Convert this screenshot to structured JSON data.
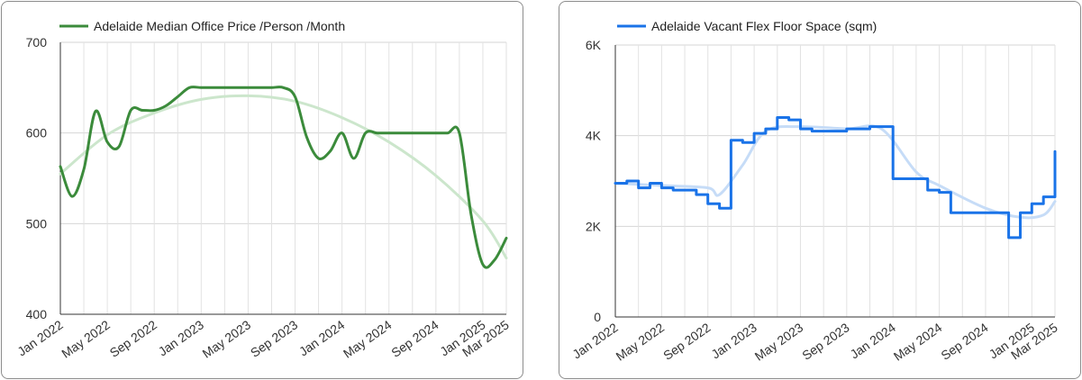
{
  "chart_data": [
    {
      "type": "line",
      "title": "",
      "legend": "top-left",
      "grid": true,
      "ylim": [
        400,
        700
      ],
      "y_ticks": [
        "400",
        "500",
        "600",
        "700"
      ],
      "x_ticks": [
        "Jan 2022",
        "May 2022",
        "Sep 2022",
        "Jan 2023",
        "May 2023",
        "Sep 2023",
        "Jan 2024",
        "May 2024",
        "Sep 2024",
        "Jan 2025",
        "Mar 2025"
      ],
      "x_range": [
        "2022-01",
        "2025-03"
      ],
      "series": [
        {
          "name": "Adelaide Median Office Price /Person /Month",
          "color": "#3b8b3b",
          "points": [
            [
              "2022-01",
              563
            ],
            [
              "2022-02",
              530
            ],
            [
              "2022-03",
              560
            ],
            [
              "2022-04",
              624
            ],
            [
              "2022-05",
              590
            ],
            [
              "2022-06",
              585
            ],
            [
              "2022-07",
              625
            ],
            [
              "2022-08",
              625
            ],
            [
              "2022-09",
              625
            ],
            [
              "2022-10",
              630
            ],
            [
              "2022-11",
              640
            ],
            [
              "2022-12",
              650
            ],
            [
              "2023-01",
              650
            ],
            [
              "2023-02",
              650
            ],
            [
              "2023-03",
              650
            ],
            [
              "2023-04",
              650
            ],
            [
              "2023-05",
              650
            ],
            [
              "2023-06",
              650
            ],
            [
              "2023-07",
              650
            ],
            [
              "2023-08",
              650
            ],
            [
              "2023-09",
              640
            ],
            [
              "2023-10",
              595
            ],
            [
              "2023-11",
              572
            ],
            [
              "2023-12",
              580
            ],
            [
              "2024-01",
              600
            ],
            [
              "2024-02",
              572
            ],
            [
              "2024-03",
              600
            ],
            [
              "2024-04",
              600
            ],
            [
              "2024-05",
              600
            ],
            [
              "2024-06",
              600
            ],
            [
              "2024-07",
              600
            ],
            [
              "2024-08",
              600
            ],
            [
              "2024-09",
              600
            ],
            [
              "2024-10",
              600
            ],
            [
              "2024-11",
              600
            ],
            [
              "2024-12",
              510
            ],
            [
              "2025-01",
              455
            ],
            [
              "2025-02",
              460
            ],
            [
              "2025-03",
              484
            ]
          ]
        },
        {
          "name": "",
          "color": "#cce6cc",
          "points": [
            [
              "2022-01",
              555
            ],
            [
              "2022-05",
              598
            ],
            [
              "2022-09",
              622
            ],
            [
              "2023-01",
              637
            ],
            [
              "2023-05",
              641
            ],
            [
              "2023-09",
              635
            ],
            [
              "2024-01",
              617
            ],
            [
              "2024-05",
              590
            ],
            [
              "2024-09",
              553
            ],
            [
              "2025-01",
              503
            ],
            [
              "2025-03",
              462
            ]
          ]
        }
      ]
    },
    {
      "type": "line",
      "title": "",
      "legend": "top-left",
      "grid": true,
      "ylim": [
        0,
        6000
      ],
      "y_ticks": [
        "0",
        "2K",
        "4K",
        "6K"
      ],
      "x_ticks": [
        "Jan 2022",
        "May 2022",
        "Sep 2022",
        "Jan 2023",
        "May 2023",
        "Sep 2023",
        "Jan 2024",
        "May 2024",
        "Sep 2024",
        "Jan 2025",
        "Mar 2025"
      ],
      "x_range": [
        "2022-01",
        "2025-03"
      ],
      "series": [
        {
          "name": "Adelaide Vacant Flex Floor Space (sqm)",
          "color": "#1a73e8",
          "points": [
            [
              "2022-01",
              2950
            ],
            [
              "2022-02",
              3000
            ],
            [
              "2022-03",
              2850
            ],
            [
              "2022-04",
              2950
            ],
            [
              "2022-05",
              2850
            ],
            [
              "2022-06",
              2800
            ],
            [
              "2022-07",
              2800
            ],
            [
              "2022-08",
              2700
            ],
            [
              "2022-09",
              2500
            ],
            [
              "2022-10",
              2400
            ],
            [
              "2022-11",
              3900
            ],
            [
              "2022-12",
              3850
            ],
            [
              "2023-01",
              4050
            ],
            [
              "2023-02",
              4150
            ],
            [
              "2023-03",
              4400
            ],
            [
              "2023-04",
              4350
            ],
            [
              "2023-05",
              4150
            ],
            [
              "2023-06",
              4100
            ],
            [
              "2023-07",
              4100
            ],
            [
              "2023-08",
              4100
            ],
            [
              "2023-09",
              4150
            ],
            [
              "2023-10",
              4150
            ],
            [
              "2023-11",
              4200
            ],
            [
              "2023-12",
              4200
            ],
            [
              "2024-01",
              3050
            ],
            [
              "2024-02",
              3050
            ],
            [
              "2024-03",
              3050
            ],
            [
              "2024-04",
              2800
            ],
            [
              "2024-05",
              2750
            ],
            [
              "2024-06",
              2300
            ],
            [
              "2024-07",
              2300
            ],
            [
              "2024-08",
              2300
            ],
            [
              "2024-09",
              2300
            ],
            [
              "2024-10",
              2300
            ],
            [
              "2024-11",
              1750
            ],
            [
              "2024-12",
              2300
            ],
            [
              "2025-01",
              2500
            ],
            [
              "2025-02",
              2650
            ],
            [
              "2025-03",
              3650
            ]
          ]
        },
        {
          "name": "",
          "color": "#c6dcf7",
          "points": [
            [
              "2022-01",
              2950
            ],
            [
              "2022-05",
              2900
            ],
            [
              "2022-09",
              2850
            ],
            [
              "2022-10",
              2700
            ],
            [
              "2022-12",
              3350
            ],
            [
              "2023-02",
              4100
            ],
            [
              "2023-05",
              4200
            ],
            [
              "2023-09",
              4150
            ],
            [
              "2023-12",
              4150
            ],
            [
              "2024-03",
              3200
            ],
            [
              "2024-05",
              2900
            ],
            [
              "2024-09",
              2400
            ],
            [
              "2024-12",
              2200
            ],
            [
              "2025-02",
              2250
            ],
            [
              "2025-03",
              2550
            ]
          ]
        }
      ]
    }
  ]
}
